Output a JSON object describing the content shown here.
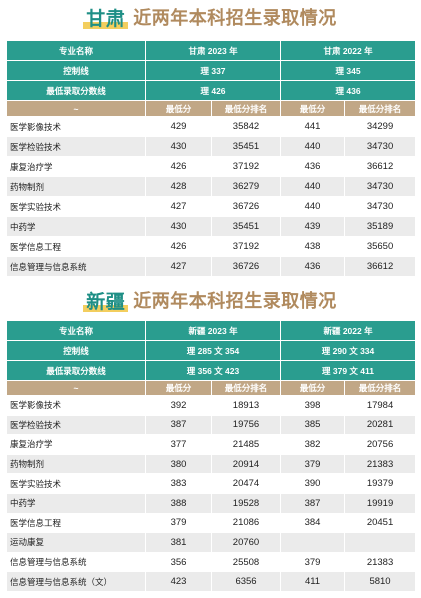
{
  "gansu": {
    "title_prov": "甘肃",
    "title_rest": "近两年本科招生录取情况",
    "header": [
      "专业名称",
      "甘肃 2023 年",
      "甘肃 2022 年"
    ],
    "control_label": "控制线",
    "control": [
      "理 337",
      "理 345"
    ],
    "min_label": "最低录取分数线",
    "min": [
      "理 426",
      "理 436"
    ],
    "sub": [
      "~",
      "最低分",
      "最低分排名",
      "最低分",
      "最低分排名"
    ],
    "rows": [
      [
        "医学影像技术",
        "429",
        "35842",
        "441",
        "34299"
      ],
      [
        "医学检验技术",
        "430",
        "35451",
        "440",
        "34730"
      ],
      [
        "康复治疗学",
        "426",
        "37192",
        "436",
        "36612"
      ],
      [
        "药物制剂",
        "428",
        "36279",
        "440",
        "34730"
      ],
      [
        "医学实验技术",
        "427",
        "36726",
        "440",
        "34730"
      ],
      [
        "中药学",
        "430",
        "35451",
        "439",
        "35189"
      ],
      [
        "医学信息工程",
        "426",
        "37192",
        "438",
        "35650"
      ],
      [
        "信息管理与信息系统",
        "427",
        "36726",
        "436",
        "36612"
      ]
    ]
  },
  "xinjiang": {
    "title_prov": "新疆",
    "title_rest": "近两年本科招生录取情况",
    "header": [
      "专业名称",
      "新疆 2023 年",
      "新疆 2022 年"
    ],
    "control_label": "控制线",
    "control": [
      "理 285 文 354",
      "理 290 文 334"
    ],
    "min_label": "最低录取分数线",
    "min": [
      "理 356 文 423",
      "理 379 文 411"
    ],
    "sub": [
      "~",
      "最低分",
      "最低分排名",
      "最低分",
      "最低分排名"
    ],
    "rows": [
      [
        "医学影像技术",
        "392",
        "18913",
        "398",
        "17984"
      ],
      [
        "医学检验技术",
        "387",
        "19756",
        "385",
        "20281"
      ],
      [
        "康复治疗学",
        "377",
        "21485",
        "382",
        "20756"
      ],
      [
        "药物制剂",
        "380",
        "20914",
        "379",
        "21383"
      ],
      [
        "医学实验技术",
        "383",
        "20474",
        "390",
        "19379"
      ],
      [
        "中药学",
        "388",
        "19528",
        "387",
        "19919"
      ],
      [
        "医学信息工程",
        "379",
        "21086",
        "384",
        "20451"
      ],
      [
        "运动康复",
        "381",
        "20760",
        "",
        ""
      ],
      [
        "信息管理与信息系统",
        "356",
        "25508",
        "379",
        "21383"
      ],
      [
        "信息管理与信息系统（文）",
        "423",
        "6356",
        "411",
        "5810"
      ]
    ]
  }
}
